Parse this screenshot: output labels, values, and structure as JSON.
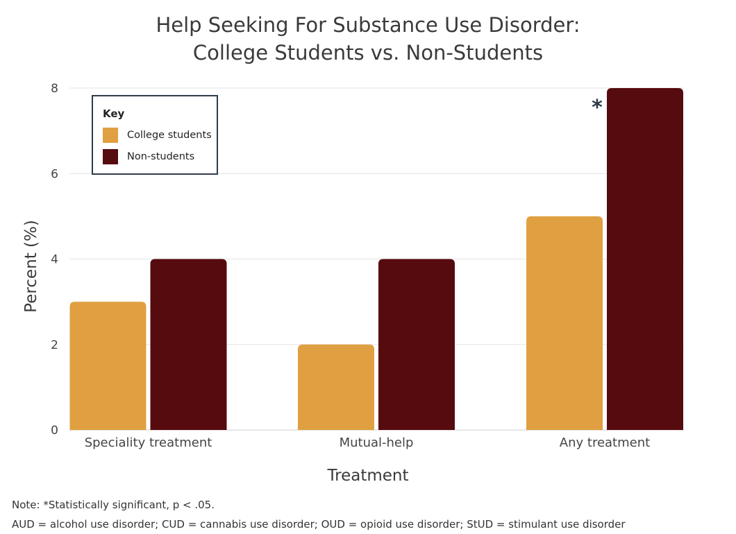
{
  "chart_data": {
    "type": "bar",
    "title": [
      "Help Seeking For Substance Use Disorder:",
      "College Students vs. Non-Students"
    ],
    "xlabel": "Treatment",
    "ylabel": "Percent (%)",
    "categories": [
      "Speciality treatment",
      "Mutual-help",
      "Any treatment"
    ],
    "series": [
      {
        "name": "College students",
        "color": "#e0a041",
        "values": [
          3,
          2,
          5
        ]
      },
      {
        "name": "Non-students",
        "color": "#560b0e",
        "values": [
          4,
          4,
          8
        ]
      }
    ],
    "ylim": [
      0,
      8
    ],
    "yticks": [
      0,
      2,
      4,
      6,
      8
    ],
    "grid": true,
    "legend": {
      "title": "Key",
      "placement": "top-left"
    },
    "annotations": [
      {
        "text": "*",
        "category": "Any treatment",
        "series": "Non-students"
      }
    ]
  },
  "note": {
    "line1": "Note: *Statistically significant, p < .05.",
    "line2": "AUD = alcohol use disorder; CUD = cannabis use disorder; OUD = opioid use disorder; StUD = stimulant use disorder"
  }
}
